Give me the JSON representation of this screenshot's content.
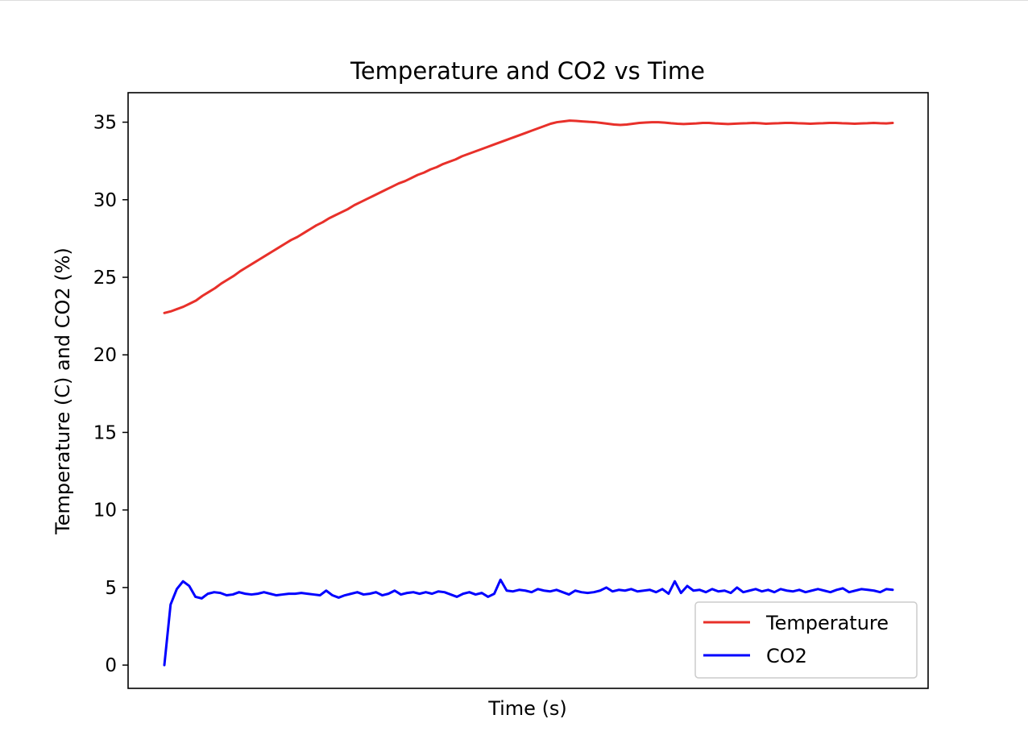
{
  "chart_data": {
    "type": "line",
    "title": "Temperature and CO2 vs Time",
    "xlabel": "Time (s)",
    "ylabel": "Temperature (C) and CO2 (%)",
    "x_tick_labels_shown": false,
    "ylim": [
      -1.5,
      36.9
    ],
    "yticks": [
      "0",
      "5",
      "10",
      "15",
      "20",
      "25",
      "30",
      "35"
    ],
    "grid": false,
    "legend_position": "lower-right",
    "series": [
      {
        "name": "Temperature",
        "color": "#e8302a",
        "values": [
          22.7,
          22.8,
          22.95,
          23.1,
          23.3,
          23.5,
          23.8,
          24.05,
          24.3,
          24.6,
          24.85,
          25.1,
          25.4,
          25.65,
          25.9,
          26.15,
          26.4,
          26.65,
          26.9,
          27.15,
          27.4,
          27.6,
          27.85,
          28.1,
          28.35,
          28.55,
          28.8,
          29.0,
          29.2,
          29.4,
          29.65,
          29.85,
          30.05,
          30.25,
          30.45,
          30.65,
          30.85,
          31.05,
          31.2,
          31.4,
          31.6,
          31.75,
          31.95,
          32.1,
          32.3,
          32.45,
          32.6,
          32.8,
          32.95,
          33.1,
          33.25,
          33.4,
          33.55,
          33.7,
          33.85,
          34.0,
          34.15,
          34.3,
          34.45,
          34.6,
          34.75,
          34.9,
          35.0,
          35.05,
          35.1,
          35.08,
          35.05,
          35.02,
          35.0,
          34.95,
          34.9,
          34.85,
          34.82,
          34.85,
          34.9,
          34.95,
          34.98,
          35.0,
          35.0,
          34.97,
          34.93,
          34.9,
          34.88,
          34.9,
          34.92,
          34.95,
          34.95,
          34.92,
          34.9,
          34.88,
          34.9,
          34.92,
          34.93,
          34.95,
          34.93,
          34.9,
          34.92,
          34.93,
          34.95,
          34.95,
          34.93,
          34.92,
          34.9,
          34.92,
          34.93,
          34.95,
          34.95,
          34.93,
          34.92,
          34.9,
          34.92,
          34.93,
          34.95,
          34.93,
          34.92,
          34.95
        ]
      },
      {
        "name": "CO2",
        "color": "#0000ff",
        "values": [
          0.0,
          3.9,
          4.9,
          5.4,
          5.1,
          4.4,
          4.3,
          4.6,
          4.7,
          4.65,
          4.5,
          4.55,
          4.7,
          4.6,
          4.55,
          4.6,
          4.7,
          4.6,
          4.5,
          4.55,
          4.6,
          4.6,
          4.65,
          4.6,
          4.55,
          4.5,
          4.8,
          4.5,
          4.35,
          4.5,
          4.6,
          4.7,
          4.55,
          4.6,
          4.7,
          4.5,
          4.6,
          4.8,
          4.55,
          4.65,
          4.7,
          4.6,
          4.7,
          4.6,
          4.75,
          4.7,
          4.55,
          4.4,
          4.6,
          4.7,
          4.55,
          4.65,
          4.4,
          4.6,
          5.5,
          4.8,
          4.75,
          4.85,
          4.8,
          4.7,
          4.9,
          4.8,
          4.75,
          4.85,
          4.7,
          4.55,
          4.8,
          4.7,
          4.65,
          4.7,
          4.8,
          5.0,
          4.75,
          4.85,
          4.8,
          4.9,
          4.75,
          4.8,
          4.85,
          4.7,
          4.9,
          4.6,
          5.4,
          4.65,
          5.1,
          4.8,
          4.85,
          4.7,
          4.9,
          4.75,
          4.8,
          4.65,
          5.0,
          4.7,
          4.8,
          4.9,
          4.75,
          4.85,
          4.7,
          4.9,
          4.8,
          4.75,
          4.85,
          4.7,
          4.8,
          4.9,
          4.8,
          4.7,
          4.85,
          4.95,
          4.7,
          4.8,
          4.9,
          4.85,
          4.8,
          4.7,
          4.9,
          4.85
        ]
      }
    ]
  }
}
